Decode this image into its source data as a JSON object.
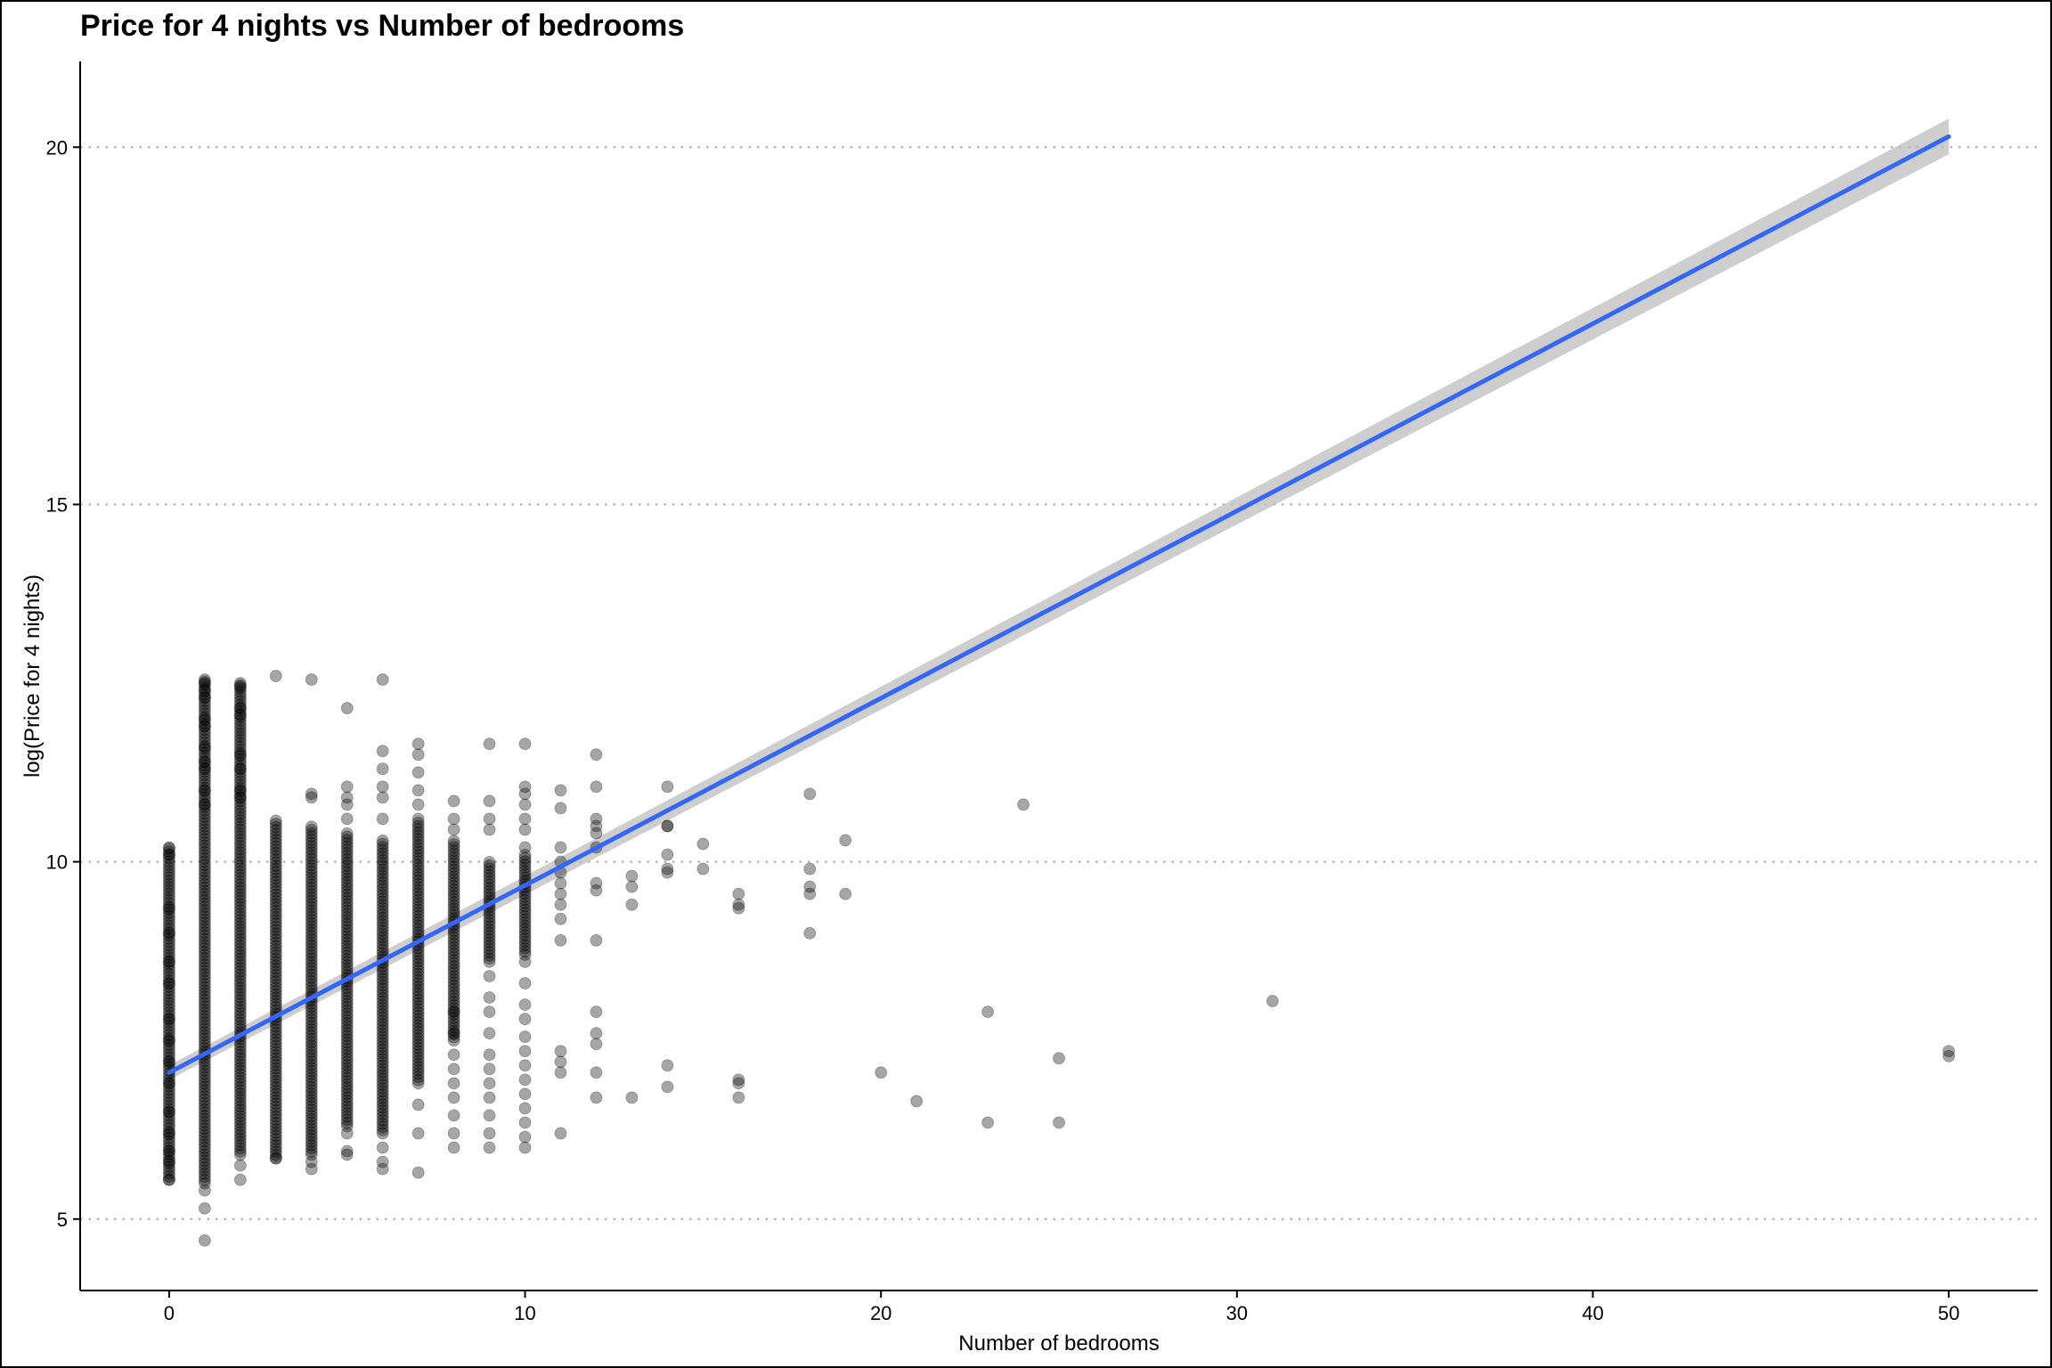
{
  "chart_data": {
    "type": "scatter",
    "title": "Price for 4 nights vs Number of bedrooms",
    "xlabel": "Number of bedrooms",
    "ylabel": "log(Price for 4 nights)",
    "xlim": [
      -2.5,
      52.5
    ],
    "ylim": [
      4.0,
      21.2
    ],
    "x_ticks": [
      0,
      10,
      20,
      30,
      40,
      50
    ],
    "y_ticks": [
      5,
      10,
      15,
      20
    ],
    "grid": "horizontal dotted at y ticks",
    "point_color": "#000000",
    "point_opacity": 0.35,
    "columns": [
      {
        "x": 0,
        "min": 5.55,
        "max": 10.2
      },
      {
        "x": 1,
        "min": 5.5,
        "max": 12.55
      },
      {
        "x": 2,
        "min": 5.9,
        "max": 12.5
      },
      {
        "x": 3,
        "min": 5.85,
        "max": 10.6
      },
      {
        "x": 4,
        "min": 5.9,
        "max": 10.5
      },
      {
        "x": 5,
        "min": 6.3,
        "max": 10.4
      },
      {
        "x": 6,
        "min": 6.2,
        "max": 10.3
      },
      {
        "x": 7,
        "min": 6.9,
        "max": 10.55
      },
      {
        "x": 8,
        "min": 7.5,
        "max": 10.3
      },
      {
        "x": 9,
        "min": 8.6,
        "max": 10.0
      },
      {
        "x": 10,
        "min": 8.7,
        "max": 10.1
      }
    ],
    "points": [
      {
        "x": 0,
        "y": 10.2
      },
      {
        "x": 0,
        "y": 10.1
      },
      {
        "x": 0,
        "y": 9.35
      },
      {
        "x": 0,
        "y": 9.0
      },
      {
        "x": 0,
        "y": 8.6
      },
      {
        "x": 0,
        "y": 8.3
      },
      {
        "x": 0,
        "y": 7.8
      },
      {
        "x": 0,
        "y": 7.5
      },
      {
        "x": 0,
        "y": 7.2
      },
      {
        "x": 0,
        "y": 6.9
      },
      {
        "x": 0,
        "y": 6.5
      },
      {
        "x": 0,
        "y": 6.2
      },
      {
        "x": 0,
        "y": 5.95
      },
      {
        "x": 0,
        "y": 5.8
      },
      {
        "x": 0,
        "y": 5.55
      },
      {
        "x": 1,
        "y": 12.55
      },
      {
        "x": 1,
        "y": 12.5
      },
      {
        "x": 1,
        "y": 12.4
      },
      {
        "x": 1,
        "y": 12.3
      },
      {
        "x": 1,
        "y": 12.0
      },
      {
        "x": 1,
        "y": 11.9
      },
      {
        "x": 1,
        "y": 11.6
      },
      {
        "x": 1,
        "y": 11.4
      },
      {
        "x": 1,
        "y": 11.3
      },
      {
        "x": 1,
        "y": 11.0
      },
      {
        "x": 1,
        "y": 10.8
      },
      {
        "x": 1,
        "y": 5.4
      },
      {
        "x": 1,
        "y": 5.15
      },
      {
        "x": 1,
        "y": 4.7
      },
      {
        "x": 2,
        "y": 12.5
      },
      {
        "x": 2,
        "y": 12.45
      },
      {
        "x": 2,
        "y": 12.15
      },
      {
        "x": 2,
        "y": 12.05
      },
      {
        "x": 2,
        "y": 11.5
      },
      {
        "x": 2,
        "y": 11.3
      },
      {
        "x": 2,
        "y": 11.0
      },
      {
        "x": 2,
        "y": 10.9
      },
      {
        "x": 2,
        "y": 5.75
      },
      {
        "x": 2,
        "y": 5.55
      },
      {
        "x": 3,
        "y": 12.6
      },
      {
        "x": 3,
        "y": 5.85
      },
      {
        "x": 4,
        "y": 12.55
      },
      {
        "x": 4,
        "y": 10.95
      },
      {
        "x": 4,
        "y": 10.9
      },
      {
        "x": 4,
        "y": 5.8
      },
      {
        "x": 4,
        "y": 5.7
      },
      {
        "x": 5,
        "y": 12.15
      },
      {
        "x": 5,
        "y": 11.05
      },
      {
        "x": 5,
        "y": 10.9
      },
      {
        "x": 5,
        "y": 10.8
      },
      {
        "x": 5,
        "y": 10.6
      },
      {
        "x": 5,
        "y": 6.2
      },
      {
        "x": 5,
        "y": 5.95
      },
      {
        "x": 5,
        "y": 5.9
      },
      {
        "x": 6,
        "y": 12.55
      },
      {
        "x": 6,
        "y": 11.55
      },
      {
        "x": 6,
        "y": 11.3
      },
      {
        "x": 6,
        "y": 11.05
      },
      {
        "x": 6,
        "y": 10.9
      },
      {
        "x": 6,
        "y": 10.6
      },
      {
        "x": 6,
        "y": 6.0
      },
      {
        "x": 6,
        "y": 5.8
      },
      {
        "x": 6,
        "y": 5.7
      },
      {
        "x": 7,
        "y": 11.65
      },
      {
        "x": 7,
        "y": 11.5
      },
      {
        "x": 7,
        "y": 11.25
      },
      {
        "x": 7,
        "y": 11.0
      },
      {
        "x": 7,
        "y": 10.8
      },
      {
        "x": 7,
        "y": 10.6
      },
      {
        "x": 7,
        "y": 6.6
      },
      {
        "x": 7,
        "y": 6.2
      },
      {
        "x": 7,
        "y": 5.65
      },
      {
        "x": 8,
        "y": 10.85
      },
      {
        "x": 8,
        "y": 10.6
      },
      {
        "x": 8,
        "y": 10.45
      },
      {
        "x": 8,
        "y": 7.9
      },
      {
        "x": 8,
        "y": 7.6
      },
      {
        "x": 8,
        "y": 7.3
      },
      {
        "x": 8,
        "y": 7.1
      },
      {
        "x": 8,
        "y": 6.9
      },
      {
        "x": 8,
        "y": 6.7
      },
      {
        "x": 8,
        "y": 6.45
      },
      {
        "x": 8,
        "y": 6.2
      },
      {
        "x": 8,
        "y": 6.0
      },
      {
        "x": 9,
        "y": 11.65
      },
      {
        "x": 9,
        "y": 10.85
      },
      {
        "x": 9,
        "y": 10.6
      },
      {
        "x": 9,
        "y": 10.45
      },
      {
        "x": 9,
        "y": 8.4
      },
      {
        "x": 9,
        "y": 8.1
      },
      {
        "x": 9,
        "y": 7.9
      },
      {
        "x": 9,
        "y": 7.6
      },
      {
        "x": 9,
        "y": 7.3
      },
      {
        "x": 9,
        "y": 7.1
      },
      {
        "x": 9,
        "y": 6.9
      },
      {
        "x": 9,
        "y": 6.7
      },
      {
        "x": 9,
        "y": 6.45
      },
      {
        "x": 9,
        "y": 6.2
      },
      {
        "x": 9,
        "y": 6.0
      },
      {
        "x": 10,
        "y": 11.65
      },
      {
        "x": 10,
        "y": 11.05
      },
      {
        "x": 10,
        "y": 10.95
      },
      {
        "x": 10,
        "y": 10.8
      },
      {
        "x": 10,
        "y": 10.6
      },
      {
        "x": 10,
        "y": 10.45
      },
      {
        "x": 10,
        "y": 10.2
      },
      {
        "x": 10,
        "y": 8.6
      },
      {
        "x": 10,
        "y": 8.3
      },
      {
        "x": 10,
        "y": 8.0
      },
      {
        "x": 10,
        "y": 7.8
      },
      {
        "x": 10,
        "y": 7.55
      },
      {
        "x": 10,
        "y": 7.35
      },
      {
        "x": 10,
        "y": 7.15
      },
      {
        "x": 10,
        "y": 6.95
      },
      {
        "x": 10,
        "y": 6.75
      },
      {
        "x": 10,
        "y": 6.55
      },
      {
        "x": 10,
        "y": 6.35
      },
      {
        "x": 10,
        "y": 6.15
      },
      {
        "x": 10,
        "y": 6.0
      },
      {
        "x": 11,
        "y": 11.0
      },
      {
        "x": 11,
        "y": 10.75
      },
      {
        "x": 11,
        "y": 10.2
      },
      {
        "x": 11,
        "y": 10.0
      },
      {
        "x": 11,
        "y": 9.85
      },
      {
        "x": 11,
        "y": 9.7
      },
      {
        "x": 11,
        "y": 9.55
      },
      {
        "x": 11,
        "y": 9.4
      },
      {
        "x": 11,
        "y": 9.2
      },
      {
        "x": 11,
        "y": 8.9
      },
      {
        "x": 11,
        "y": 7.35
      },
      {
        "x": 11,
        "y": 7.2
      },
      {
        "x": 11,
        "y": 7.05
      },
      {
        "x": 11,
        "y": 6.2
      },
      {
        "x": 12,
        "y": 11.5
      },
      {
        "x": 12,
        "y": 11.05
      },
      {
        "x": 12,
        "y": 10.6
      },
      {
        "x": 12,
        "y": 10.5
      },
      {
        "x": 12,
        "y": 10.4
      },
      {
        "x": 12,
        "y": 10.2
      },
      {
        "x": 12,
        "y": 9.7
      },
      {
        "x": 12,
        "y": 9.6
      },
      {
        "x": 12,
        "y": 8.9
      },
      {
        "x": 12,
        "y": 7.9
      },
      {
        "x": 12,
        "y": 7.6
      },
      {
        "x": 12,
        "y": 7.45
      },
      {
        "x": 12,
        "y": 7.05
      },
      {
        "x": 12,
        "y": 6.7
      },
      {
        "x": 13,
        "y": 9.8
      },
      {
        "x": 13,
        "y": 9.65
      },
      {
        "x": 13,
        "y": 9.4
      },
      {
        "x": 13,
        "y": 6.7
      },
      {
        "x": 14,
        "y": 11.05
      },
      {
        "x": 14,
        "y": 10.5
      },
      {
        "x": 14,
        "y": 10.5
      },
      {
        "x": 14,
        "y": 10.1
      },
      {
        "x": 14,
        "y": 9.9
      },
      {
        "x": 14,
        "y": 9.85
      },
      {
        "x": 14,
        "y": 7.15
      },
      {
        "x": 14,
        "y": 6.85
      },
      {
        "x": 15,
        "y": 10.25
      },
      {
        "x": 15,
        "y": 9.9
      },
      {
        "x": 16,
        "y": 9.55
      },
      {
        "x": 16,
        "y": 9.4
      },
      {
        "x": 16,
        "y": 9.35
      },
      {
        "x": 16,
        "y": 6.95
      },
      {
        "x": 16,
        "y": 6.9
      },
      {
        "x": 16,
        "y": 6.7
      },
      {
        "x": 18,
        "y": 10.95
      },
      {
        "x": 18,
        "y": 9.9
      },
      {
        "x": 18,
        "y": 9.65
      },
      {
        "x": 18,
        "y": 9.55
      },
      {
        "x": 18,
        "y": 9.0
      },
      {
        "x": 19,
        "y": 10.3
      },
      {
        "x": 19,
        "y": 9.55
      },
      {
        "x": 20,
        "y": 7.05
      },
      {
        "x": 21,
        "y": 6.65
      },
      {
        "x": 23,
        "y": 7.9
      },
      {
        "x": 23,
        "y": 6.35
      },
      {
        "x": 24,
        "y": 10.8
      },
      {
        "x": 25,
        "y": 7.25
      },
      {
        "x": 25,
        "y": 6.35
      },
      {
        "x": 31,
        "y": 8.05
      },
      {
        "x": 50,
        "y": 7.35
      },
      {
        "x": 50,
        "y": 7.28
      }
    ],
    "trend": {
      "type": "linear fit with confidence band",
      "color": "#3366FF",
      "band_color": "#BEBEBE",
      "x": [
        0,
        50
      ],
      "y": [
        7.05,
        20.15
      ],
      "band_lower": [
        6.95,
        19.9
      ],
      "band_upper": [
        7.15,
        20.4
      ]
    }
  }
}
